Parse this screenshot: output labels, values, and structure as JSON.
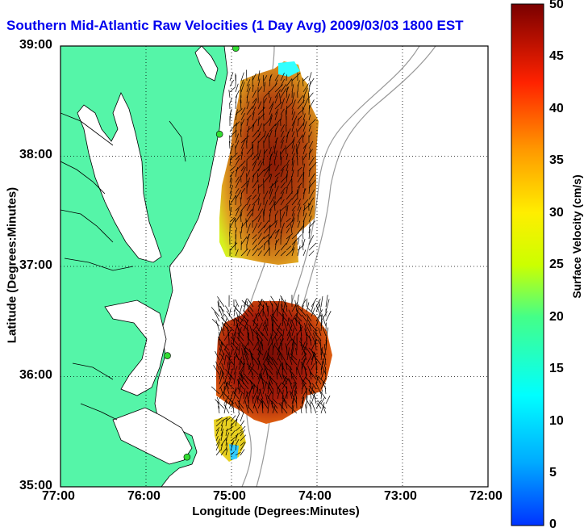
{
  "title": "Southern Mid-Atlantic Raw Velocities (1 Day Avg) 2009/03/03 1800 EST",
  "axes": {
    "xlabel": "Longitude (Degrees:Minutes)",
    "ylabel": "Latitude (Degrees:Minutes)",
    "x_ticks": [
      "77:00",
      "76:00",
      "75:00",
      "74:00",
      "73:00",
      "72:00"
    ],
    "y_ticks": [
      "39:00",
      "38:00",
      "37:00",
      "36:00",
      "35:00"
    ],
    "x_range_deg_west": [
      77,
      72
    ],
    "y_range_deg_north": [
      35,
      39
    ],
    "grid": "dotted"
  },
  "colorbar": {
    "label": "Surface Velocity (cm/s)",
    "ticks": [
      "50",
      "45",
      "40",
      "35",
      "30",
      "25",
      "20",
      "15",
      "10",
      "5",
      "0"
    ],
    "range": [
      0,
      50
    ],
    "colormap": "jet"
  },
  "colors": {
    "title": "#0000ee",
    "land": "#55f5a8",
    "bathymetry": "#999999",
    "station": "#33dd33"
  },
  "stations": [
    {
      "lat": 38.98,
      "lon": -74.95
    },
    {
      "lat": 38.2,
      "lon": -75.14
    },
    {
      "lat": 36.19,
      "lon": -75.75
    },
    {
      "lat": 35.27,
      "lon": -75.52
    }
  ]
}
